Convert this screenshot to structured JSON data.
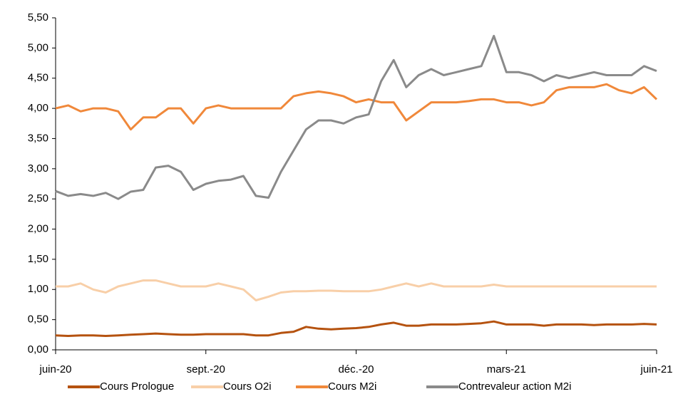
{
  "chart_data": {
    "type": "line",
    "x": [
      0,
      0.25,
      0.5,
      0.75,
      1,
      1.25,
      1.5,
      1.75,
      2,
      2.25,
      2.5,
      2.75,
      3,
      3.25,
      3.5,
      3.75,
      4,
      4.25,
      4.5,
      4.75,
      5,
      5.25,
      5.5,
      5.75,
      6,
      6.25,
      6.5,
      6.75,
      7,
      7.25,
      7.5,
      7.75,
      8,
      8.25,
      8.5,
      8.75,
      9,
      9.25,
      9.5,
      9.75,
      10,
      10.25,
      10.5,
      10.75,
      11,
      11.25,
      11.5,
      11.75,
      12
    ],
    "xlim": [
      0,
      12
    ],
    "xticks": [
      {
        "value": 0,
        "label": "juin-20"
      },
      {
        "value": 3,
        "label": "sept.-20"
      },
      {
        "value": 6,
        "label": "déc.-20"
      },
      {
        "value": 9,
        "label": "mars-21"
      },
      {
        "value": 12,
        "label": "juin-21"
      }
    ],
    "ylim": [
      0,
      5.5
    ],
    "yticks": [
      {
        "value": 0,
        "label": "0,00"
      },
      {
        "value": 0.5,
        "label": "0,50"
      },
      {
        "value": 1,
        "label": "1,00"
      },
      {
        "value": 1.5,
        "label": "1,50"
      },
      {
        "value": 2,
        "label": "2,00"
      },
      {
        "value": 2.5,
        "label": "2,50"
      },
      {
        "value": 3,
        "label": "3,00"
      },
      {
        "value": 3.5,
        "label": "3,50"
      },
      {
        "value": 4,
        "label": "4,00"
      },
      {
        "value": 4.5,
        "label": "4,50"
      },
      {
        "value": 5,
        "label": "5,00"
      },
      {
        "value": 5.5,
        "label": "5,50"
      }
    ],
    "grid": false,
    "legend": "bottom",
    "series": [
      {
        "name": "Cours Prologue",
        "color": "#b5520f",
        "values": [
          0.24,
          0.23,
          0.24,
          0.24,
          0.23,
          0.24,
          0.25,
          0.26,
          0.27,
          0.26,
          0.25,
          0.25,
          0.26,
          0.26,
          0.26,
          0.26,
          0.24,
          0.24,
          0.28,
          0.3,
          0.38,
          0.35,
          0.34,
          0.35,
          0.36,
          0.38,
          0.42,
          0.45,
          0.4,
          0.4,
          0.42,
          0.42,
          0.42,
          0.43,
          0.44,
          0.47,
          0.42,
          0.42,
          0.42,
          0.4,
          0.42,
          0.42,
          0.42,
          0.41,
          0.42,
          0.42,
          0.42,
          0.43,
          0.42
        ]
      },
      {
        "name": "Cours O2i",
        "color": "#f8cfa8",
        "values": [
          1.05,
          1.05,
          1.1,
          1.0,
          0.95,
          1.05,
          1.1,
          1.15,
          1.15,
          1.1,
          1.05,
          1.05,
          1.05,
          1.1,
          1.05,
          1.0,
          0.82,
          0.88,
          0.95,
          0.97,
          0.97,
          0.98,
          0.98,
          0.97,
          0.97,
          0.97,
          1.0,
          1.05,
          1.1,
          1.05,
          1.1,
          1.05,
          1.05,
          1.05,
          1.05,
          1.08,
          1.05,
          1.05,
          1.05,
          1.05,
          1.05,
          1.05,
          1.05,
          1.05,
          1.05,
          1.05,
          1.05,
          1.05,
          1.05
        ]
      },
      {
        "name": "Cours M2i",
        "color": "#f0883a",
        "values": [
          4.0,
          4.05,
          3.95,
          4.0,
          4.0,
          3.95,
          3.65,
          3.85,
          3.85,
          4.0,
          4.0,
          3.75,
          4.0,
          4.05,
          4.0,
          4.0,
          4.0,
          4.0,
          4.0,
          4.2,
          4.25,
          4.28,
          4.25,
          4.2,
          4.1,
          4.15,
          4.1,
          4.1,
          3.8,
          3.95,
          4.1,
          4.1,
          4.1,
          4.12,
          4.15,
          4.15,
          4.1,
          4.1,
          4.05,
          4.1,
          4.3,
          4.35,
          4.35,
          4.35,
          4.4,
          4.3,
          4.25,
          4.35,
          4.15
        ]
      },
      {
        "name": "Contrevaleur action M2i",
        "color": "#8a8a8a",
        "values": [
          2.63,
          2.55,
          2.58,
          2.55,
          2.6,
          2.5,
          2.62,
          2.65,
          3.02,
          3.05,
          2.95,
          2.65,
          2.75,
          2.8,
          2.82,
          2.88,
          2.55,
          2.52,
          2.95,
          3.3,
          3.65,
          3.8,
          3.8,
          3.75,
          3.85,
          3.9,
          4.45,
          4.8,
          4.35,
          4.55,
          4.65,
          4.55,
          4.6,
          4.65,
          4.7,
          5.2,
          4.6,
          4.6,
          4.55,
          4.45,
          4.55,
          4.5,
          4.55,
          4.6,
          4.55,
          4.55,
          4.55,
          4.7,
          4.62
        ]
      }
    ]
  }
}
